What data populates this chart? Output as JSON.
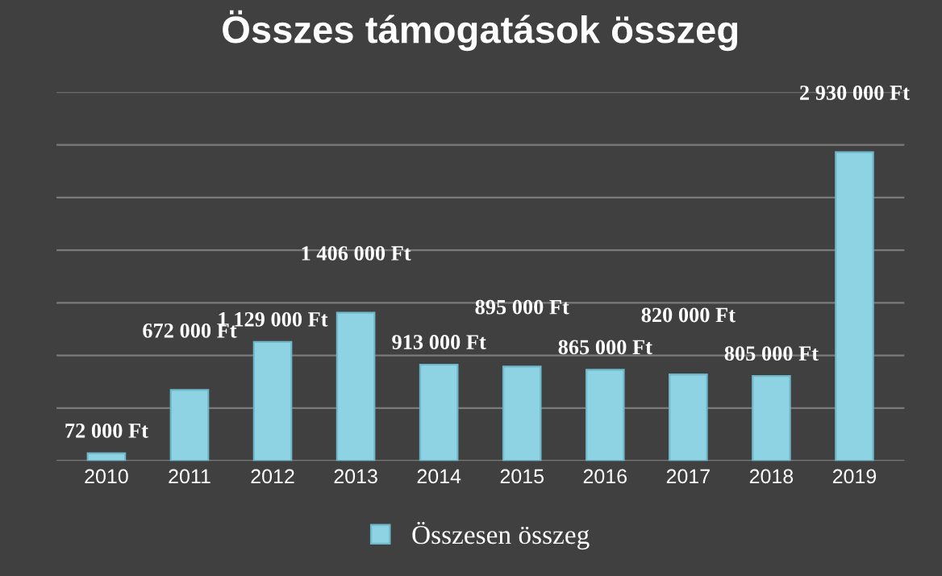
{
  "chart_data": {
    "type": "bar",
    "title": "Összes támogatások összeg",
    "categories": [
      "2010",
      "2011",
      "2012",
      "2013",
      "2014",
      "2015",
      "2016",
      "2017",
      "2018",
      "2019"
    ],
    "series": [
      {
        "name": "Összesen összeg",
        "color": "#8ed3e4",
        "values": [
          72000,
          672000,
          1129000,
          1406000,
          913000,
          895000,
          865000,
          820000,
          805000,
          2930000
        ],
        "value_labels": [
          "72 000 Ft",
          "672 000 Ft",
          "1 129 000 Ft",
          "1 406 000 Ft",
          "913 000 Ft",
          "895 000 Ft",
          "865 000 Ft",
          "820 000 Ft",
          "805 000 Ft",
          "2 930 000 Ft"
        ]
      }
    ],
    "ylim": [
      0,
      3500000
    ],
    "yticks": [
      {
        "value": 0,
        "label": null
      },
      {
        "value": 500000,
        "label": null
      },
      {
        "value": 1000000,
        "label": null
      },
      {
        "value": 1500000,
        "label": null
      },
      {
        "value": 2000000,
        "label": null
      },
      {
        "value": 2500000,
        "label": null
      },
      {
        "value": 3000000,
        "label": null
      },
      {
        "value": 3500000,
        "label": null
      }
    ],
    "grid": "y",
    "legend": "bottom",
    "tick_labels": "x"
  }
}
